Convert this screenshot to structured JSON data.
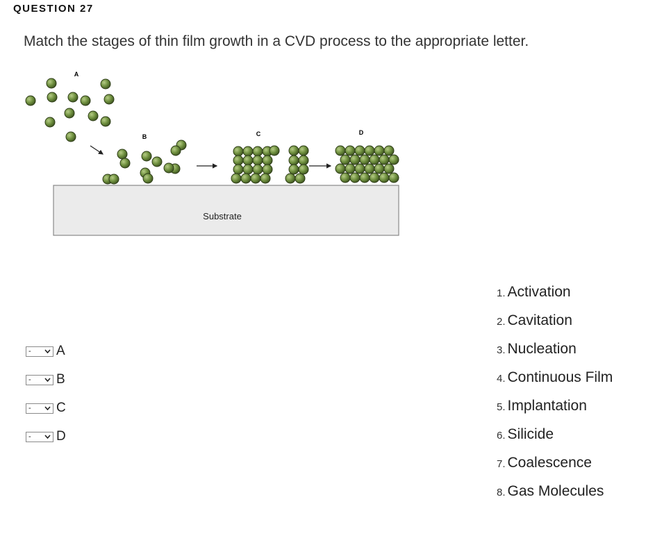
{
  "question": {
    "header": "QUESTION 27",
    "text": "Match the stages of thin film growth in a CVD process to the appropriate letter."
  },
  "figure": {
    "stage_labels": [
      "A",
      "B",
      "C",
      "D"
    ],
    "substrate_label": "Substrate",
    "colors": {
      "molecule_fill": "#6e8f3e",
      "molecule_stroke": "#2e3d18",
      "substrate_fill": "#ebebeb"
    }
  },
  "selects": [
    {
      "letter": "A",
      "value": "-"
    },
    {
      "letter": "B",
      "value": "-"
    },
    {
      "letter": "C",
      "value": "-"
    },
    {
      "letter": "D",
      "value": "-"
    }
  ],
  "options": [
    {
      "num": "1.",
      "label": "Activation"
    },
    {
      "num": "2.",
      "label": "Cavitation"
    },
    {
      "num": "3.",
      "label": "Nucleation"
    },
    {
      "num": "4.",
      "label": "Continuous Film"
    },
    {
      "num": "5.",
      "label": "Implantation"
    },
    {
      "num": "6.",
      "label": "Silicide"
    },
    {
      "num": "7.",
      "label": "Coalescence"
    },
    {
      "num": "8.",
      "label": "Gas Molecules"
    }
  ]
}
